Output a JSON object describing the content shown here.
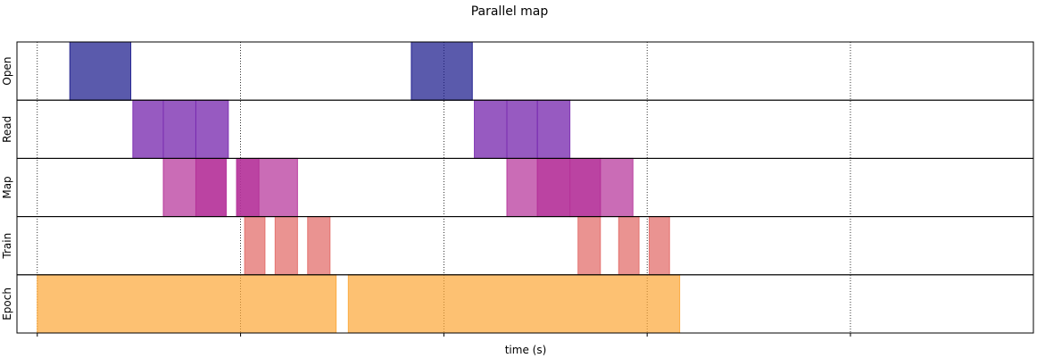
{
  "chart_data": {
    "type": "bar",
    "title": "Parallel map",
    "xlabel": "time (s)",
    "ylabel": "",
    "xlim": [
      -0.1,
      4.9
    ],
    "grid": "vertical dotted",
    "xticks": [
      0,
      1,
      2,
      3,
      4
    ],
    "rows": [
      {
        "name": "Open",
        "color": "#1a1a8c",
        "opacity": 0.72
      },
      {
        "name": "Read",
        "color": "#7a2cb0",
        "opacity": 0.78
      },
      {
        "name": "Map",
        "color": "#b5339a",
        "opacity": 0.75
      },
      {
        "name": "Train",
        "color": "#e26a67",
        "opacity": 0.75
      },
      {
        "name": "Epoch",
        "color": "#fca636",
        "opacity": 0.7
      }
    ],
    "bars": [
      {
        "row": "Open",
        "start": 0.16,
        "end": 0.46,
        "opacity": 0.72
      },
      {
        "row": "Open",
        "start": 1.84,
        "end": 2.14,
        "opacity": 0.72
      },
      {
        "row": "Read",
        "start": 0.47,
        "end": 0.62,
        "opacity": 0.78
      },
      {
        "row": "Read",
        "start": 0.62,
        "end": 0.78,
        "opacity": 0.78
      },
      {
        "row": "Read",
        "start": 0.78,
        "end": 0.94,
        "opacity": 0.78
      },
      {
        "row": "Read",
        "start": 2.15,
        "end": 2.31,
        "opacity": 0.78
      },
      {
        "row": "Read",
        "start": 2.31,
        "end": 2.46,
        "opacity": 0.78
      },
      {
        "row": "Read",
        "start": 2.46,
        "end": 2.62,
        "opacity": 0.78
      },
      {
        "row": "Map",
        "start": 0.62,
        "end": 0.78,
        "opacity": 0.72
      },
      {
        "row": "Map",
        "start": 0.78,
        "end": 0.93,
        "opacity": 0.92
      },
      {
        "row": "Map",
        "start": 0.98,
        "end": 1.09,
        "opacity": 0.92
      },
      {
        "row": "Map",
        "start": 1.09,
        "end": 1.28,
        "opacity": 0.72
      },
      {
        "row": "Map",
        "start": 2.31,
        "end": 2.46,
        "opacity": 0.72
      },
      {
        "row": "Map",
        "start": 2.46,
        "end": 2.62,
        "opacity": 0.92
      },
      {
        "row": "Map",
        "start": 2.62,
        "end": 2.77,
        "opacity": 0.92
      },
      {
        "row": "Map",
        "start": 2.77,
        "end": 2.93,
        "opacity": 0.72
      },
      {
        "row": "Train",
        "start": 1.02,
        "end": 1.12,
        "opacity": 0.72
      },
      {
        "row": "Train",
        "start": 1.17,
        "end": 1.28,
        "opacity": 0.72
      },
      {
        "row": "Train",
        "start": 1.33,
        "end": 1.44,
        "opacity": 0.72
      },
      {
        "row": "Train",
        "start": 2.66,
        "end": 2.77,
        "opacity": 0.72
      },
      {
        "row": "Train",
        "start": 2.86,
        "end": 2.96,
        "opacity": 0.72
      },
      {
        "row": "Train",
        "start": 3.01,
        "end": 3.11,
        "opacity": 0.72
      },
      {
        "row": "Epoch",
        "start": 0.0,
        "end": 1.47,
        "opacity": 0.7
      },
      {
        "row": "Epoch",
        "start": 1.53,
        "end": 3.16,
        "opacity": 0.7
      }
    ]
  }
}
